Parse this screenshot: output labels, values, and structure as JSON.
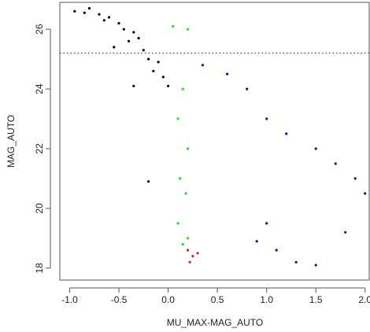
{
  "chart_data": {
    "type": "scatter",
    "title": "",
    "xlabel": "MU_MAX-MAG_AUTO",
    "ylabel": "MAG_AUTO",
    "xlim": [
      -1.1,
      2.05
    ],
    "ylim": [
      17.6,
      26.9
    ],
    "x_ticks": [
      -1.0,
      -0.5,
      0.0,
      0.5,
      1.0,
      1.5,
      2.0
    ],
    "x_tick_labels": [
      "-1.0",
      "-0.5",
      "0.0",
      "0.5",
      "1.0",
      "1.5",
      "2.0"
    ],
    "y_ticks": [
      18,
      20,
      22,
      24,
      26
    ],
    "y_tick_labels": [
      "18",
      "20",
      "22",
      "24",
      "26"
    ],
    "hline": {
      "y": 25.2,
      "style": "dotted",
      "color": "#444444"
    },
    "grid": false,
    "legend": "none",
    "series": [
      {
        "color": "#000000",
        "points": [
          [
            -0.95,
            26.6
          ],
          [
            -0.85,
            26.55
          ],
          [
            -0.8,
            26.7
          ],
          [
            -0.7,
            26.5
          ],
          [
            -0.65,
            26.3
          ],
          [
            -0.6,
            26.4
          ],
          [
            -0.5,
            26.2
          ],
          [
            -0.45,
            26.0
          ],
          [
            -0.4,
            25.6
          ],
          [
            -0.35,
            25.9
          ],
          [
            -0.3,
            25.7
          ],
          [
            -0.25,
            25.3
          ],
          [
            -0.2,
            25.0
          ],
          [
            -0.15,
            24.6
          ],
          [
            -0.1,
            24.9
          ],
          [
            -0.05,
            24.4
          ],
          [
            0.0,
            24.1
          ],
          [
            -0.2,
            20.9
          ],
          [
            -0.35,
            24.1
          ],
          [
            -0.55,
            25.4
          ]
        ]
      },
      {
        "color": "#22dd22",
        "points": [
          [
            0.05,
            26.1
          ],
          [
            0.2,
            26.0
          ],
          [
            0.15,
            24.0
          ],
          [
            0.1,
            23.0
          ],
          [
            0.2,
            22.0
          ],
          [
            0.12,
            21.0
          ],
          [
            0.18,
            20.5
          ],
          [
            0.1,
            19.5
          ],
          [
            0.2,
            19.0
          ],
          [
            0.15,
            18.8
          ]
        ]
      },
      {
        "color": "#1010aa",
        "points": [
          [
            0.35,
            24.8
          ],
          [
            0.6,
            24.5
          ],
          [
            0.8,
            24.0
          ],
          [
            1.0,
            23.0
          ],
          [
            1.2,
            22.5
          ],
          [
            1.5,
            22.0
          ],
          [
            1.7,
            21.5
          ],
          [
            1.9,
            21.0
          ],
          [
            2.0,
            20.5
          ],
          [
            1.0,
            19.5
          ],
          [
            1.3,
            18.2
          ],
          [
            1.5,
            18.1
          ],
          [
            1.8,
            19.2
          ],
          [
            0.9,
            18.9
          ],
          [
            1.1,
            18.6
          ]
        ]
      },
      {
        "color": "#cc2222",
        "points": [
          [
            0.2,
            18.6
          ],
          [
            0.25,
            18.4
          ],
          [
            0.3,
            18.5
          ],
          [
            0.22,
            18.2
          ]
        ]
      }
    ]
  }
}
